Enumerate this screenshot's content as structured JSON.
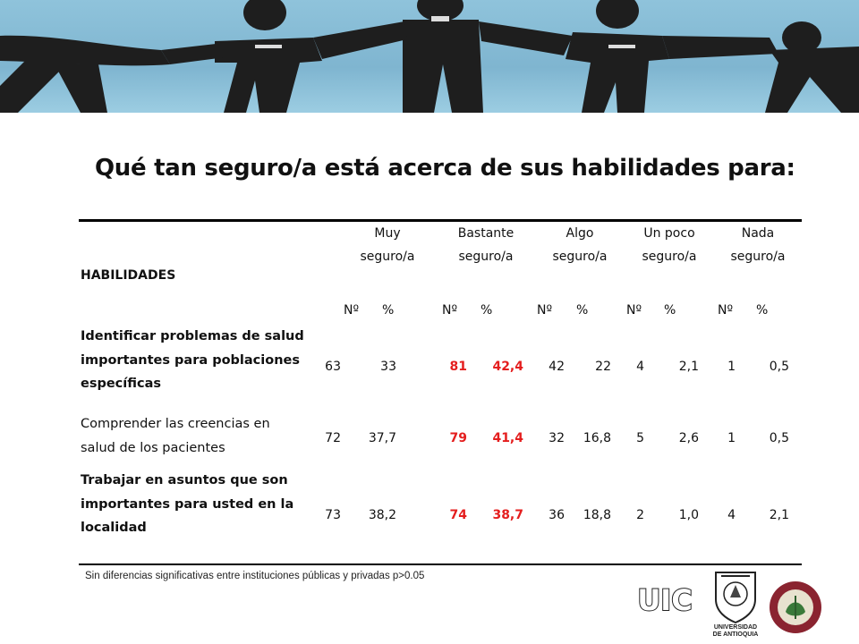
{
  "title": "Qué tan seguro/a está acerca de sus habilidades para:",
  "table": {
    "hab_header": "HABILIDADES",
    "groups": [
      {
        "line1": "Muy",
        "line2": "seguro/a"
      },
      {
        "line1": "Bastante",
        "line2": "seguro/a"
      },
      {
        "line1": "Algo",
        "line2": "seguro/a"
      },
      {
        "line1": "Un poco",
        "line2": "seguro/a"
      },
      {
        "line1": "Nada",
        "line2": "seguro/a"
      }
    ],
    "sub_n": "Nº",
    "sub_pct": "%",
    "rows": [
      {
        "label_lines": [
          "Identificar problemas de salud",
          "importantes para poblaciones",
          "específicas"
        ],
        "values": [
          "63",
          "33",
          "81",
          "42,4",
          "42",
          "22",
          "4",
          "2,1",
          "1",
          "0,5"
        ]
      },
      {
        "label_lines": [
          "Comprender las creencias en",
          "salud de los pacientes"
        ],
        "values": [
          "72",
          "37,7",
          "79",
          "41,4",
          "32",
          "16,8",
          "5",
          "2,6",
          "1",
          "0,5"
        ]
      },
      {
        "label_lines": [
          "Trabajar en asuntos que son",
          "importantes para usted en la",
          "localidad"
        ],
        "values": [
          "73",
          "38,2",
          "74",
          "38,7",
          "36",
          "18,8",
          "2",
          "1,0",
          "4",
          "2,1"
        ]
      }
    ]
  },
  "footnote": "Sin diferencias significativas entre instituciones públicas y privadas p>0.05",
  "logos": {
    "uic": "UIC",
    "udea_line1": "UNIVERSIDAD",
    "udea_line2": "DE ANTIOQUIA"
  },
  "colors": {
    "highlight": "#e41e1e",
    "banner": "#8fc3db"
  }
}
